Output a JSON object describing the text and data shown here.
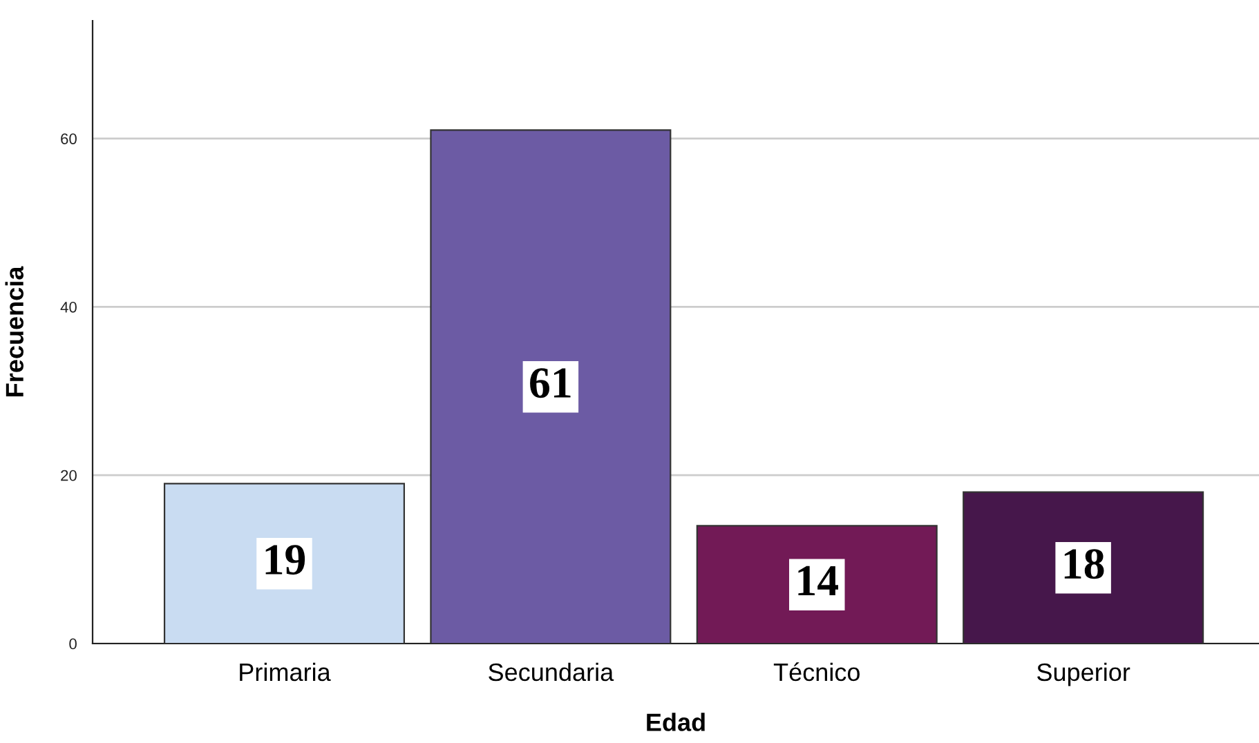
{
  "chart_data": {
    "type": "bar",
    "xlabel": "Edad",
    "ylabel": "Frecuencia",
    "categories": [
      "Primaria",
      "Secundaria",
      "Técnico",
      "Superior"
    ],
    "values": [
      19,
      61,
      14,
      18
    ],
    "colors": [
      "#c9dcf2",
      "#6c5ba4",
      "#721a56",
      "#46174b"
    ],
    "ylim": [
      0,
      74
    ],
    "yticks": [
      0,
      20,
      40,
      60
    ],
    "grid": "y",
    "data_labels": true
  }
}
